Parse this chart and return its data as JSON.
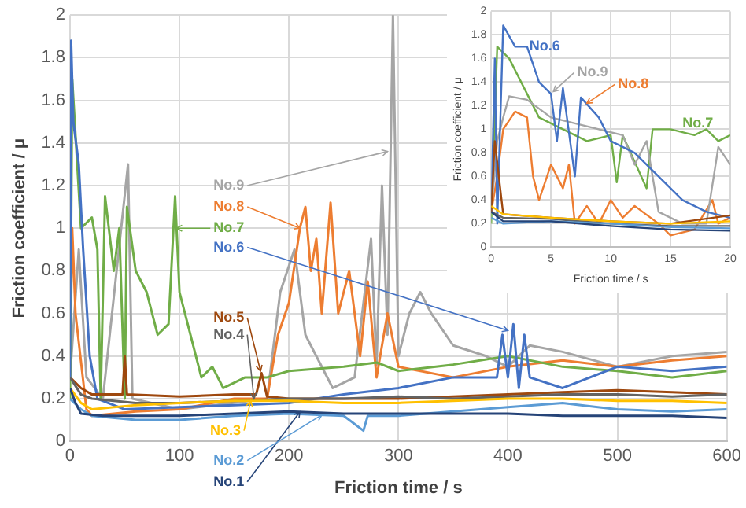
{
  "chart_data": [
    {
      "type": "line",
      "xlabel": "Friction time / s",
      "ylabel": "Friction coefficient / μ",
      "xlim": [
        0,
        600
      ],
      "xticks": [
        0,
        100,
        200,
        300,
        400,
        500,
        600
      ],
      "ylim": [
        0,
        2
      ],
      "yticks": [
        0,
        0.2,
        0.4,
        0.6,
        0.8,
        1,
        1.2,
        1.4,
        1.6,
        1.8,
        2
      ],
      "grid": true,
      "marker": "none",
      "line_style": "solid",
      "series": [
        {
          "name": "No.1",
          "color": "#264478",
          "x": [
            0,
            5,
            10,
            30,
            50,
            100,
            150,
            200,
            250,
            300,
            350,
            400,
            450,
            500,
            550,
            600
          ],
          "values": [
            0.25,
            0.18,
            0.13,
            0.12,
            0.12,
            0.12,
            0.13,
            0.14,
            0.13,
            0.13,
            0.13,
            0.13,
            0.12,
            0.12,
            0.12,
            0.11
          ]
        },
        {
          "name": "No.2",
          "color": "#5b9bd5",
          "x": [
            0,
            10,
            20,
            60,
            100,
            150,
            200,
            250,
            268,
            272,
            300,
            350,
            400,
            450,
            500,
            550,
            600
          ],
          "values": [
            0.2,
            0.15,
            0.12,
            0.1,
            0.1,
            0.12,
            0.13,
            0.12,
            0.05,
            0.12,
            0.12,
            0.14,
            0.16,
            0.18,
            0.15,
            0.14,
            0.15
          ]
        },
        {
          "name": "No.3",
          "color": "#ffc000",
          "x": [
            0,
            10,
            20,
            60,
            100,
            150,
            200,
            250,
            300,
            350,
            400,
            450,
            500,
            550,
            600
          ],
          "values": [
            0.25,
            0.18,
            0.15,
            0.17,
            0.18,
            0.19,
            0.19,
            0.18,
            0.18,
            0.19,
            0.2,
            0.2,
            0.19,
            0.19,
            0.18
          ]
        },
        {
          "name": "No.4",
          "color": "#636363",
          "x": [
            0,
            10,
            20,
            60,
            100,
            150,
            200,
            250,
            300,
            350,
            400,
            450,
            500,
            550,
            600
          ],
          "values": [
            0.3,
            0.22,
            0.2,
            0.18,
            0.18,
            0.19,
            0.2,
            0.2,
            0.21,
            0.2,
            0.21,
            0.22,
            0.22,
            0.21,
            0.22
          ]
        },
        {
          "name": "No.5",
          "color": "#9e480e",
          "x": [
            0,
            10,
            20,
            48,
            50,
            52,
            100,
            150,
            170,
            175,
            180,
            200,
            250,
            300,
            350,
            400,
            450,
            500,
            550,
            600
          ],
          "values": [
            0.3,
            0.25,
            0.22,
            0.22,
            0.4,
            0.22,
            0.21,
            0.22,
            0.22,
            0.32,
            0.21,
            0.2,
            0.2,
            0.2,
            0.21,
            0.22,
            0.23,
            0.24,
            0.23,
            0.22
          ]
        },
        {
          "name": "No.6",
          "color": "#4472c4",
          "x": [
            0,
            1,
            3,
            8,
            12,
            18,
            25,
            50,
            100,
            150,
            200,
            250,
            300,
            350,
            390,
            395,
            400,
            405,
            410,
            415,
            420,
            450,
            500,
            550,
            600
          ],
          "values": [
            0.3,
            1.88,
            1.5,
            1.3,
            0.9,
            0.4,
            0.2,
            0.15,
            0.16,
            0.17,
            0.18,
            0.22,
            0.25,
            0.3,
            0.3,
            0.5,
            0.3,
            0.55,
            0.25,
            0.5,
            0.3,
            0.25,
            0.35,
            0.33,
            0.35
          ]
        },
        {
          "name": "No.7",
          "color": "#70ad47",
          "x": [
            0,
            2,
            10,
            20,
            25,
            28,
            32,
            40,
            45,
            50,
            52,
            60,
            70,
            80,
            90,
            96,
            100,
            110,
            120,
            130,
            140,
            160,
            180,
            200,
            250,
            280,
            300,
            350,
            400,
            450,
            500,
            550,
            600
          ],
          "values": [
            0.2,
            1.7,
            1.0,
            1.05,
            0.9,
            0.2,
            1.15,
            0.8,
            1.0,
            0.2,
            1.1,
            0.8,
            0.7,
            0.5,
            0.55,
            1.15,
            0.7,
            0.5,
            0.3,
            0.35,
            0.25,
            0.3,
            0.3,
            0.33,
            0.35,
            0.37,
            0.33,
            0.36,
            0.4,
            0.35,
            0.33,
            0.3,
            0.33
          ]
        },
        {
          "name": "No.8",
          "color": "#ed7d31",
          "x": [
            0,
            2,
            5,
            15,
            20,
            60,
            100,
            150,
            180,
            190,
            200,
            210,
            215,
            220,
            225,
            230,
            238,
            245,
            255,
            265,
            272,
            280,
            290,
            300,
            350,
            400,
            450,
            500,
            550,
            600
          ],
          "values": [
            0.3,
            1.0,
            0.6,
            0.15,
            0.12,
            0.14,
            0.15,
            0.2,
            0.2,
            0.5,
            0.65,
            1.0,
            1.1,
            0.8,
            0.95,
            0.6,
            1.12,
            0.6,
            0.8,
            0.4,
            0.75,
            0.3,
            0.6,
            0.35,
            0.3,
            0.35,
            0.38,
            0.35,
            0.38,
            0.4
          ]
        },
        {
          "name": "No.9",
          "color": "#a5a5a5",
          "x": [
            0,
            8,
            15,
            30,
            53,
            57,
            100,
            180,
            192,
            205,
            215,
            240,
            260,
            275,
            280,
            285,
            290,
            295,
            300,
            310,
            320,
            330,
            350,
            380,
            400,
            420,
            450,
            500,
            550,
            600
          ],
          "values": [
            0.3,
            0.9,
            0.3,
            0.2,
            1.3,
            0.2,
            0.15,
            0.2,
            0.7,
            0.9,
            0.5,
            0.25,
            0.3,
            0.95,
            0.36,
            1.2,
            0.5,
            2.0,
            0.4,
            0.6,
            0.7,
            0.6,
            0.45,
            0.4,
            0.35,
            0.45,
            0.42,
            0.35,
            0.4,
            0.42
          ]
        }
      ]
    },
    {
      "type": "line",
      "xlabel": "Friction time / s",
      "ylabel": "Friction coefficient / μ",
      "xlim": [
        0,
        20
      ],
      "xticks": [
        0,
        5,
        10,
        15,
        20
      ],
      "ylim": [
        0,
        2
      ],
      "yticks": [
        0,
        0.2,
        0.4,
        0.6,
        0.8,
        1,
        1.2,
        1.4,
        1.6,
        1.8,
        2
      ],
      "grid": true,
      "marker": "none",
      "line_style": "solid",
      "series": [
        {
          "color": "#264478",
          "x": [
            0,
            1,
            5,
            10,
            15,
            20
          ],
          "values": [
            0.3,
            0.22,
            0.22,
            0.18,
            0.15,
            0.14
          ]
        },
        {
          "color": "#5b9bd5",
          "x": [
            0,
            1,
            5,
            10,
            15,
            20
          ],
          "values": [
            0.25,
            0.2,
            0.22,
            0.2,
            0.17,
            0.16
          ]
        },
        {
          "color": "#ffc000",
          "x": [
            0,
            1,
            5,
            10,
            15,
            20
          ],
          "values": [
            0.35,
            0.28,
            0.25,
            0.22,
            0.2,
            0.22
          ]
        },
        {
          "color": "#636363",
          "x": [
            0,
            1,
            5,
            10,
            15,
            20
          ],
          "values": [
            0.3,
            0.25,
            0.24,
            0.2,
            0.18,
            0.18
          ]
        },
        {
          "color": "#9e480e",
          "x": [
            0,
            0.3,
            1,
            5,
            10,
            15,
            20
          ],
          "values": [
            0.3,
            0.9,
            0.28,
            0.25,
            0.22,
            0.2,
            0.27
          ]
        },
        {
          "name": "No.6",
          "color": "#4472c4",
          "x": [
            0,
            0.3,
            0.5,
            1,
            2,
            3,
            4,
            5,
            5.5,
            6,
            7,
            7.5,
            9,
            10,
            12,
            14,
            16,
            18,
            20
          ],
          "values": [
            0.3,
            1.6,
            0.2,
            1.88,
            1.7,
            1.7,
            1.4,
            1.3,
            0.9,
            1.35,
            0.6,
            1.27,
            1.1,
            0.9,
            0.8,
            0.6,
            0.4,
            0.3,
            0.25
          ]
        },
        {
          "name": "No.9",
          "color": "#a5a5a5",
          "x": [
            0,
            0.5,
            1,
            1.5,
            3,
            5,
            7,
            9,
            11,
            12,
            13,
            14,
            16,
            18,
            19,
            20
          ],
          "values": [
            0.3,
            0.9,
            1.1,
            1.28,
            1.25,
            1.1,
            1.05,
            1.0,
            0.95,
            0.7,
            0.9,
            0.3,
            0.2,
            0.2,
            0.85,
            0.7
          ]
        },
        {
          "name": "No.8",
          "color": "#ed7d31",
          "x": [
            0,
            0.5,
            1,
            2,
            3,
            3.5,
            4,
            5,
            6,
            6.5,
            7,
            8,
            9,
            10,
            11,
            12,
            14,
            15,
            17,
            18.5,
            19,
            20
          ],
          "values": [
            0.3,
            0.6,
            1.0,
            1.15,
            1.1,
            0.6,
            0.4,
            0.7,
            0.5,
            0.7,
            0.2,
            0.35,
            0.2,
            0.4,
            0.25,
            0.35,
            0.2,
            0.1,
            0.15,
            0.4,
            0.2,
            0.25
          ]
        },
        {
          "name": "No.7",
          "color": "#70ad47",
          "x": [
            0,
            0.5,
            1.5,
            3,
            4,
            6,
            8,
            10,
            10.5,
            11,
            13,
            13.5,
            15,
            17,
            18,
            19,
            20
          ],
          "values": [
            0.2,
            1.7,
            1.6,
            1.3,
            1.1,
            1.0,
            0.9,
            0.95,
            0.55,
            0.95,
            0.5,
            1.0,
            1.0,
            0.95,
            1.0,
            0.9,
            0.95
          ]
        }
      ]
    }
  ]
}
